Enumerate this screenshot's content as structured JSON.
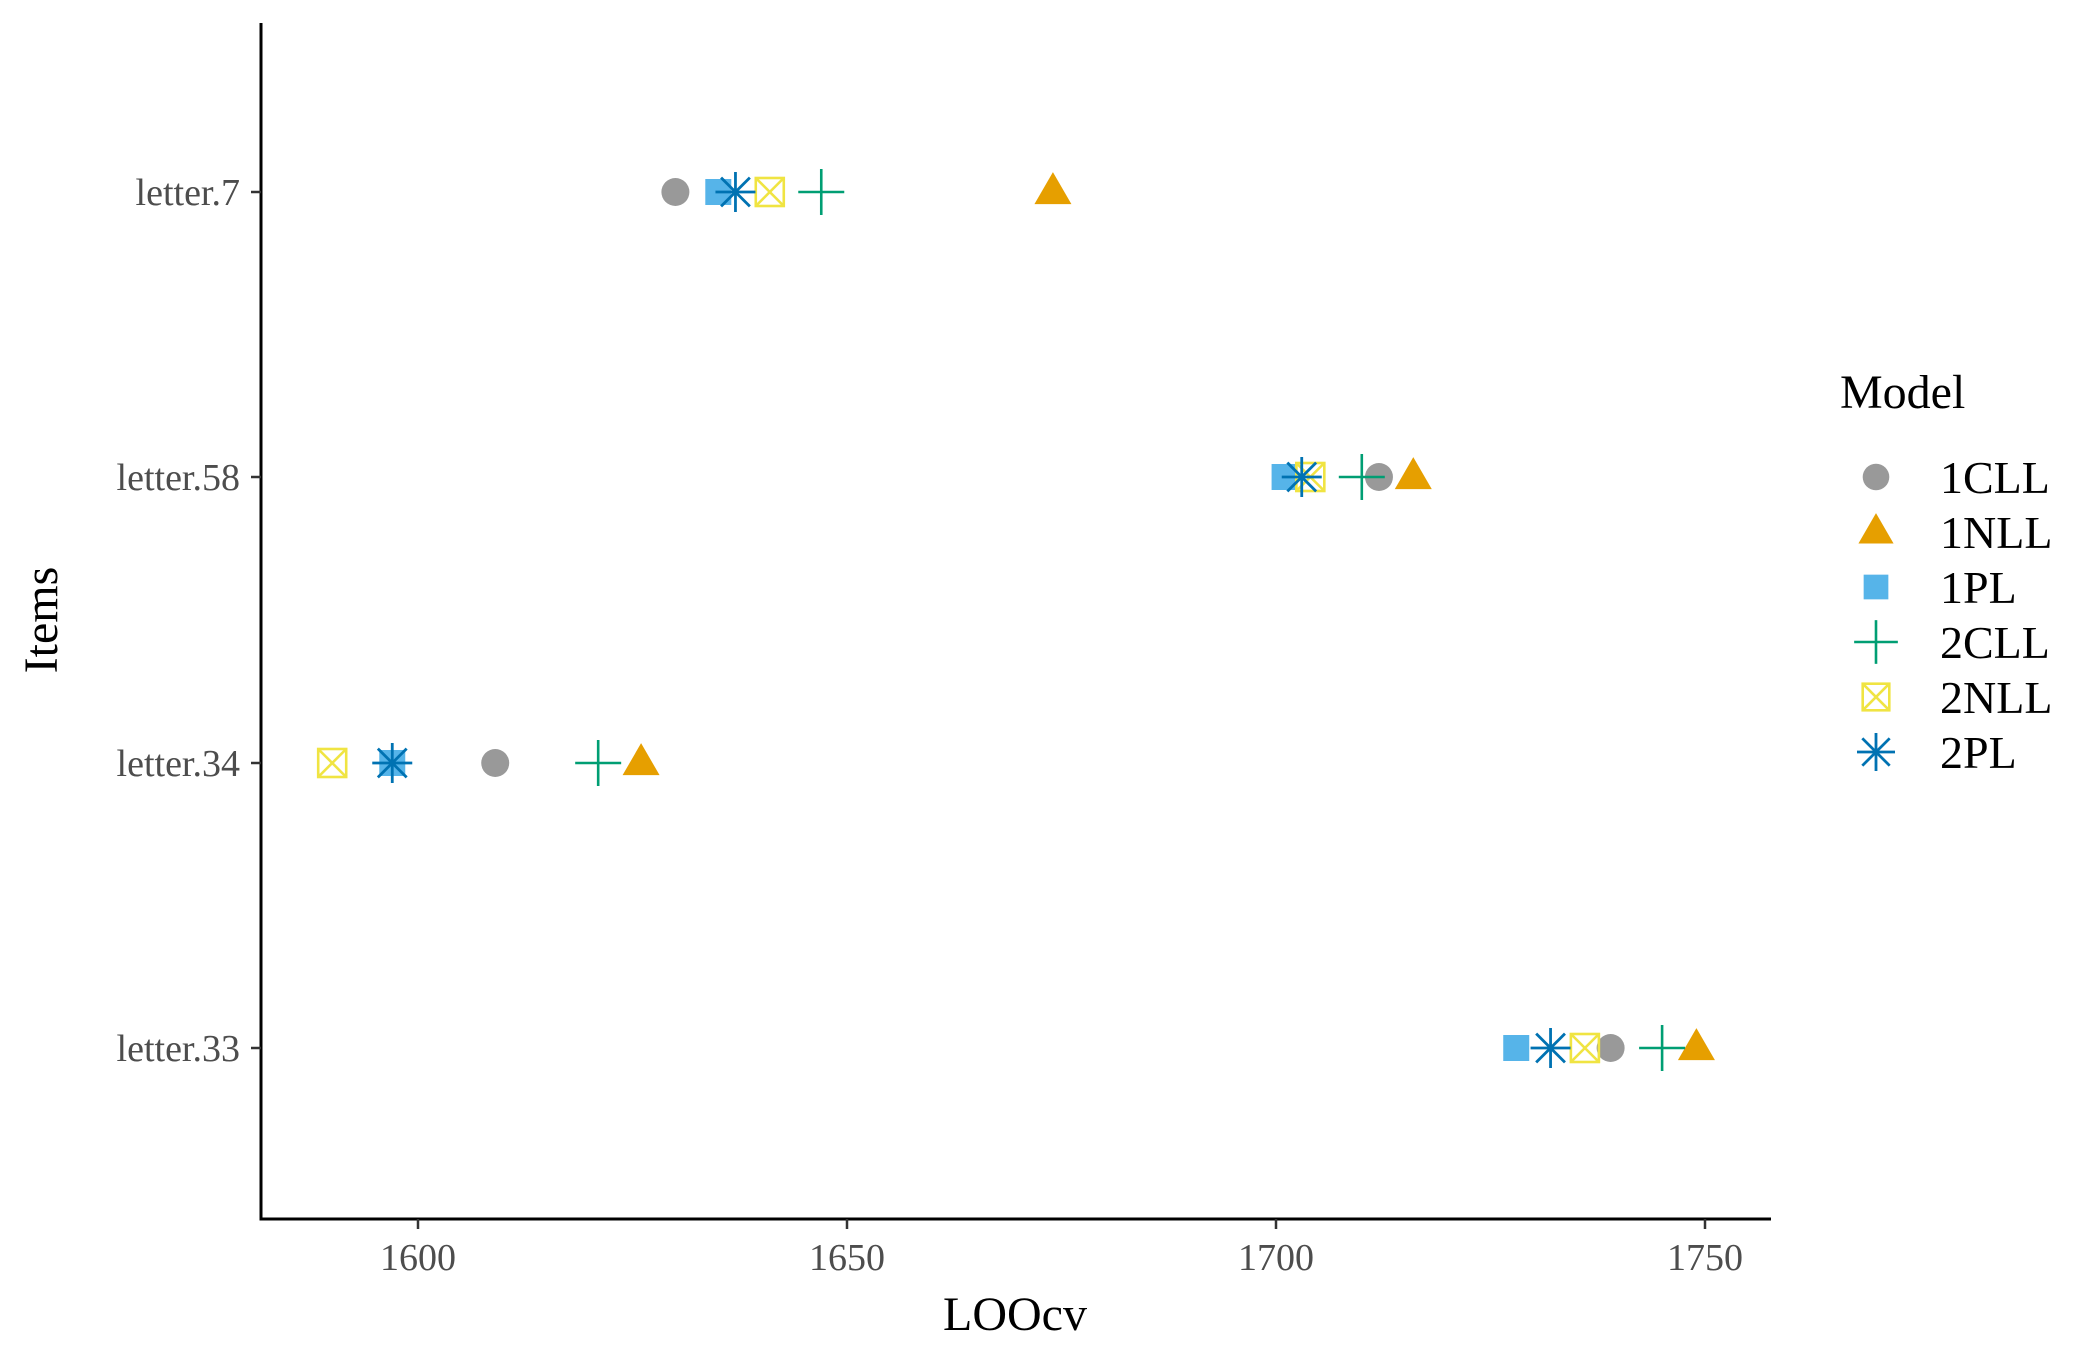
{
  "chart_data": {
    "type": "scatter",
    "title": "",
    "xlabel": "LOOcv",
    "ylabel": "Items",
    "xlim": [
      1582,
      1758
    ],
    "x_ticks": [
      1600,
      1650,
      1700,
      1750
    ],
    "categories": [
      "letter.7",
      "letter.58",
      "letter.34",
      "letter.33"
    ],
    "grid": false,
    "legend_position": "right",
    "legend_title": "Model",
    "series": [
      {
        "name": "1CLL",
        "marker": "circle",
        "color": "#999999",
        "values": [
          1630,
          1712,
          1609,
          1739
        ]
      },
      {
        "name": "1NLL",
        "marker": "triangle",
        "color": "#E69F00",
        "values": [
          1674,
          1716,
          1626,
          1749
        ]
      },
      {
        "name": "1PL",
        "marker": "square",
        "color": "#56B4E9",
        "values": [
          1635,
          1701,
          1597,
          1728
        ]
      },
      {
        "name": "2CLL",
        "marker": "plus",
        "color": "#009E73",
        "values": [
          1647,
          1710,
          1621,
          1745
        ]
      },
      {
        "name": "2NLL",
        "marker": "square-x",
        "color": "#F0E442",
        "values": [
          1641,
          1704,
          1590,
          1736
        ]
      },
      {
        "name": "2PL",
        "marker": "asterisk",
        "color": "#0072B2",
        "values": [
          1637,
          1703,
          1597,
          1732
        ]
      }
    ]
  }
}
